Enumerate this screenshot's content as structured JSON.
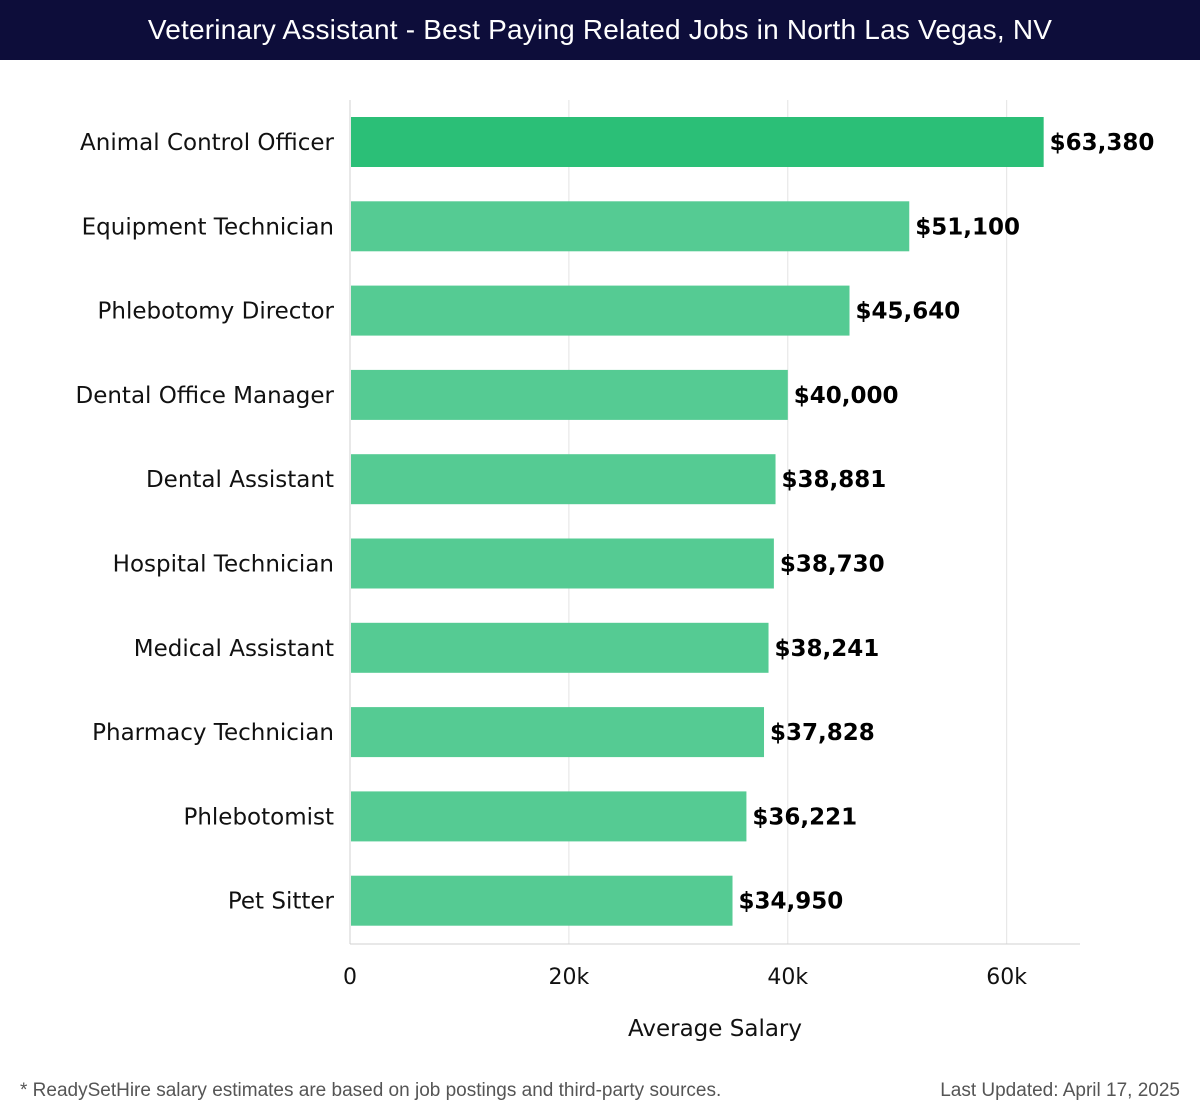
{
  "title": "Veterinary Assistant - Best Paying Related Jobs in North Las Vegas, NV",
  "footer": {
    "note": "* ReadySetHire salary estimates are based on job postings and third-party sources.",
    "updated": "Last Updated: April 17, 2025"
  },
  "colors": {
    "top_bar": "#2bbf77",
    "bar": "#55cb93",
    "title_bg": "#0d0d3a"
  },
  "chart_data": {
    "type": "bar",
    "orientation": "horizontal",
    "title": "Veterinary Assistant - Best Paying Related Jobs in North Las Vegas, NV",
    "xlabel": "Average Salary",
    "ylabel": "",
    "xlim": [
      0,
      66700
    ],
    "grid": true,
    "xticks": [
      0,
      20000,
      40000,
      60000
    ],
    "xtick_labels": [
      "0",
      "20k",
      "40k",
      "60k"
    ],
    "categories": [
      "Animal Control Officer",
      "Equipment Technician",
      "Phlebotomy Director",
      "Dental Office Manager",
      "Dental Assistant",
      "Hospital Technician",
      "Medical Assistant",
      "Pharmacy Technician",
      "Phlebotomist",
      "Pet Sitter"
    ],
    "values": [
      63380,
      51100,
      45640,
      40000,
      38881,
      38730,
      38241,
      37828,
      36221,
      34950
    ],
    "value_labels": [
      "$63,380",
      "$51,100",
      "$45,640",
      "$40,000",
      "$38,881",
      "$38,730",
      "$38,241",
      "$37,828",
      "$36,221",
      "$34,950"
    ]
  }
}
